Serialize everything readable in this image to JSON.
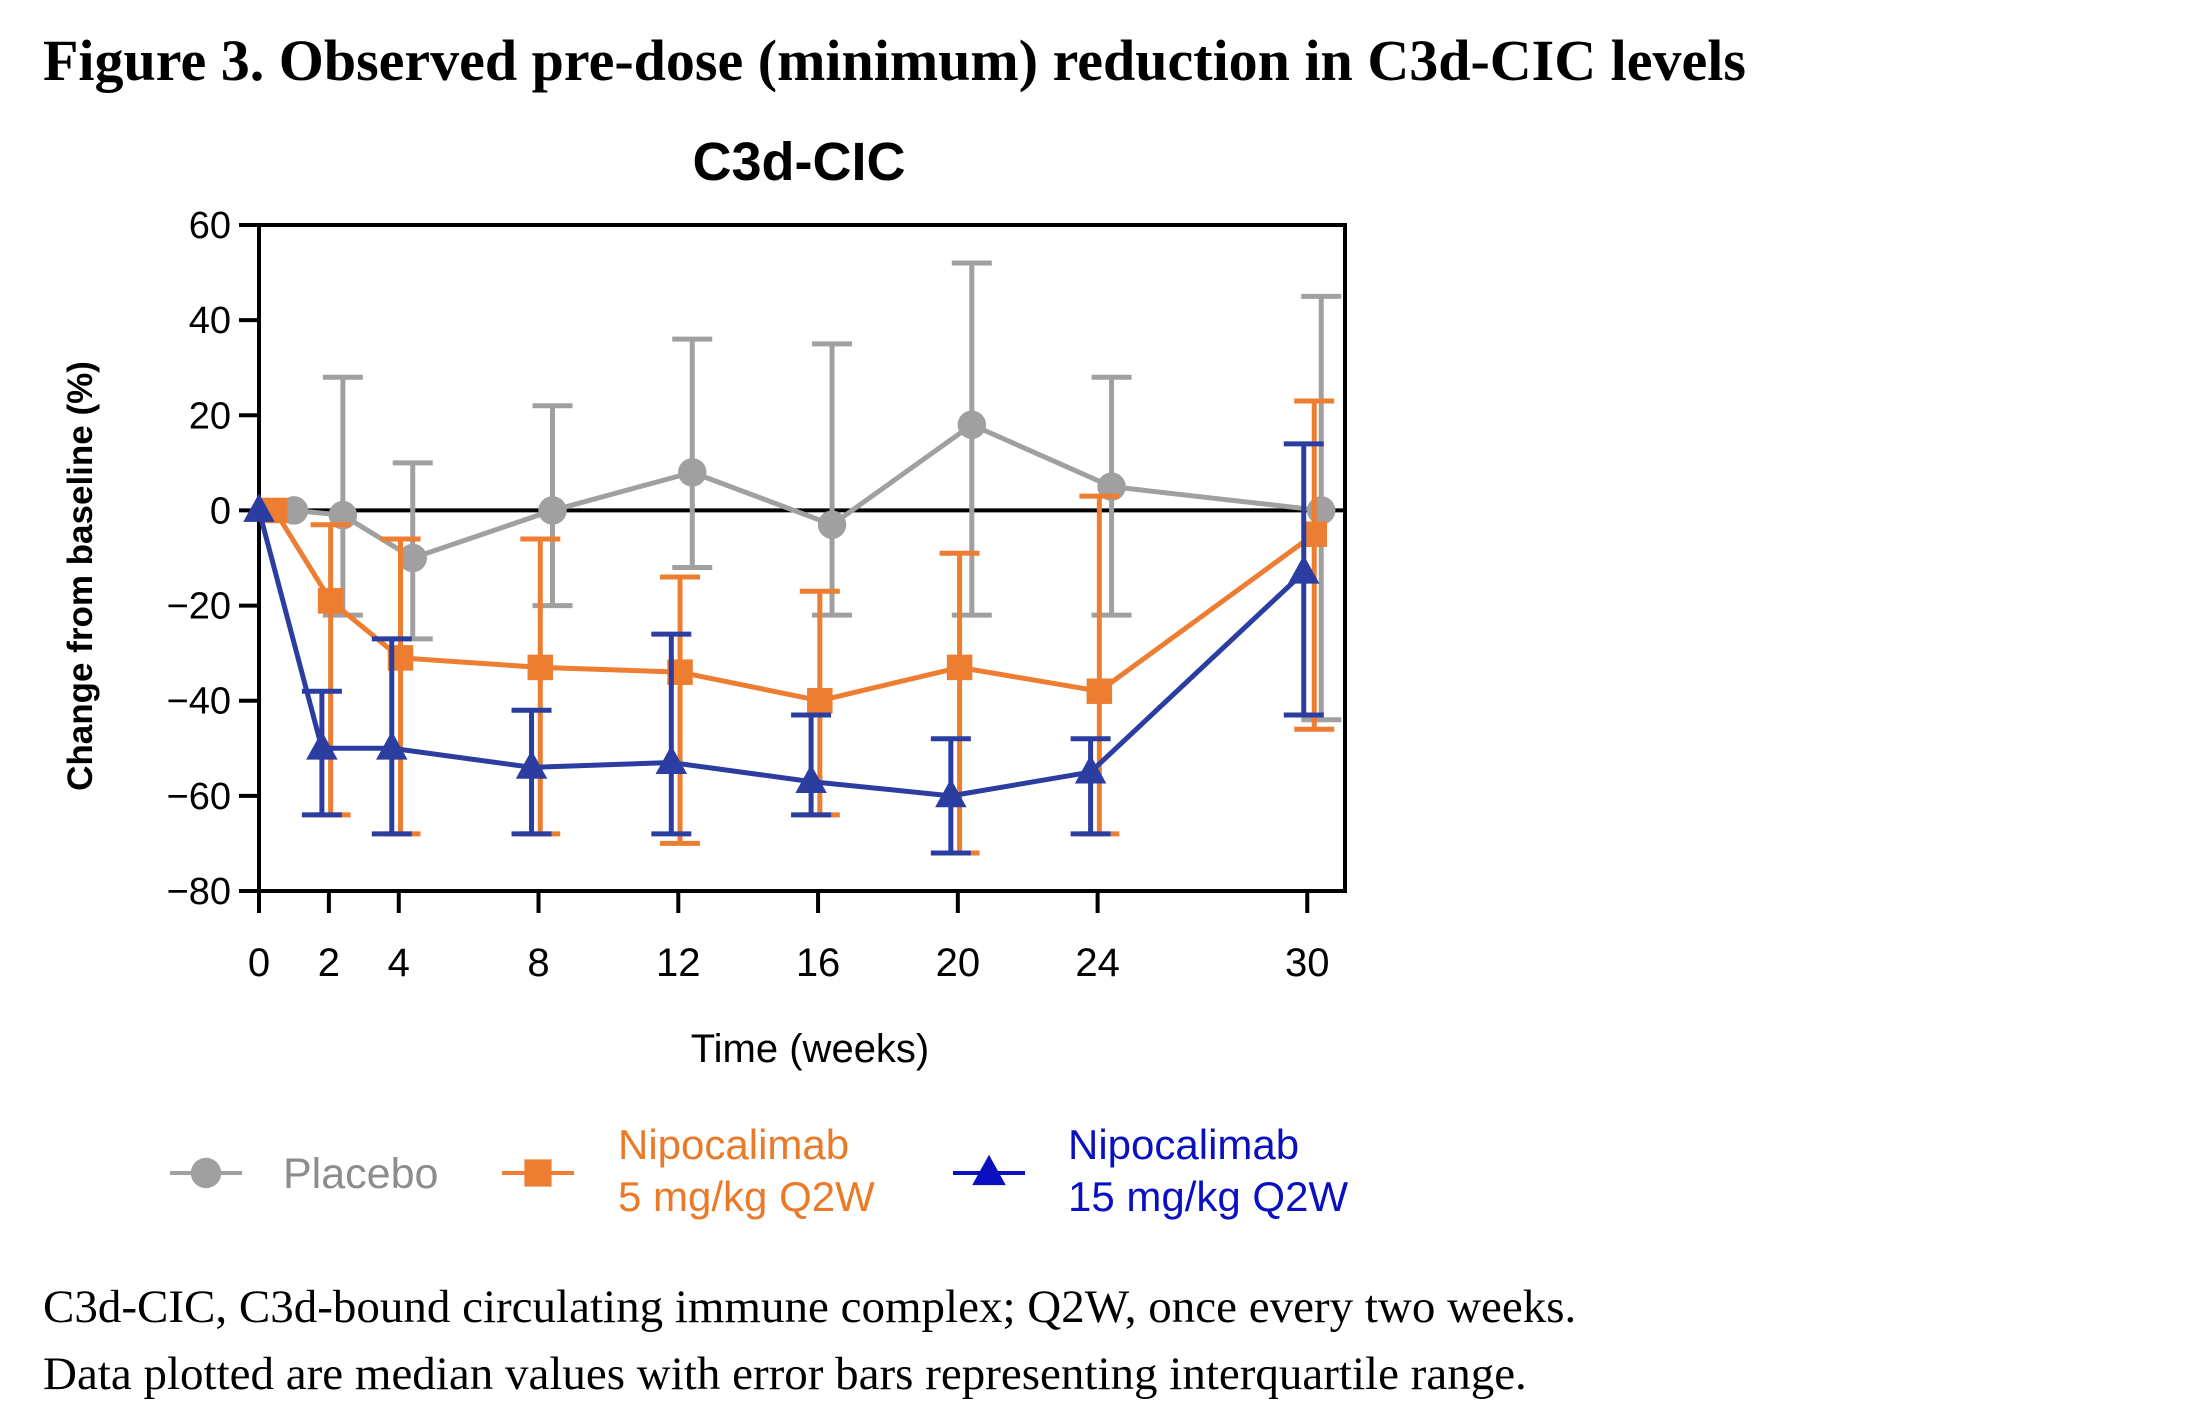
{
  "figure": {
    "title": "Figure 3. Observed pre-dose (minimum) reduction in C3d-CIC levels",
    "caption_lines": [
      "C3d-CIC, C3d-bound circulating immune complex; Q2W, once every two weeks.",
      "Data plotted are median values with error bars representing interquartile range."
    ]
  },
  "legend": {
    "items": [
      {
        "lines": [
          "Placebo"
        ],
        "marker": "circle-icon",
        "color": "#a0a0a0",
        "text_color": "#8c8c8c"
      },
      {
        "lines": [
          "Nipocalimab",
          "5 mg/kg Q2W"
        ],
        "marker": "square-icon",
        "color": "#ed7d31",
        "text_color": "#ea7a28"
      },
      {
        "lines": [
          "Nipocalimab",
          "15 mg/kg Q2W"
        ],
        "marker": "triangle-icon",
        "color": "#0a10c0",
        "text_color": "#0a10c0"
      }
    ]
  },
  "chart_data": {
    "type": "line",
    "title": "C3d-CIC",
    "xlabel": "Time (weeks)",
    "ylabel": "Change from baseline (%)",
    "x": [
      0,
      2,
      4,
      8,
      12,
      16,
      20,
      24,
      30
    ],
    "xticks": [
      0,
      2,
      4,
      8,
      12,
      16,
      20,
      24,
      30
    ],
    "xlim": [
      0,
      31.1
    ],
    "yticks": [
      60,
      40,
      20,
      0,
      -20,
      -40,
      -60,
      -80
    ],
    "ytick_labels": [
      "60",
      "40",
      "20",
      "0",
      "−20",
      "−40",
      "−60",
      "−80"
    ],
    "xtick_labels": [
      "0",
      "2",
      "4",
      "8",
      "12",
      "16",
      "20",
      "24",
      "30"
    ],
    "ylim": [
      -80,
      60
    ],
    "reference_line": 0,
    "grid": false,
    "legend_position": "bottom",
    "error_bars": "interquartile range",
    "series": [
      {
        "name": "Placebo",
        "marker": "circle",
        "color": "#a0a0a0",
        "values": [
          0,
          -1,
          -10,
          0,
          8,
          -3,
          18,
          5,
          0
        ],
        "lower": [
          0,
          -22,
          -27,
          -20,
          -12,
          -22,
          -22,
          -22,
          -44
        ],
        "upper": [
          0,
          28,
          10,
          22,
          36,
          35,
          52,
          28,
          45
        ]
      },
      {
        "name": "Nipocalimab 5 mg/kg Q2W",
        "marker": "square",
        "color": "#ed7d31",
        "values": [
          0,
          -19,
          -31,
          -33,
          -34,
          -40,
          -33,
          -38,
          -5
        ],
        "lower": [
          0,
          -64,
          -68,
          -68,
          -70,
          -64,
          -72,
          -68,
          -46
        ],
        "upper": [
          0,
          -3,
          -6,
          -6,
          -14,
          -17,
          -9,
          3,
          23
        ]
      },
      {
        "name": "Nipocalimab 15 mg/kg Q2W",
        "marker": "triangle",
        "color": "#2b3da0",
        "values": [
          0,
          -50,
          -50,
          -54,
          -53,
          -57,
          -60,
          -55,
          -13
        ],
        "lower": [
          0,
          -64,
          -68,
          -68,
          -68,
          -64,
          -72,
          -68,
          -43
        ],
        "upper": [
          0,
          -38,
          -27,
          -42,
          -26,
          -43,
          -48,
          -48,
          14
        ]
      }
    ]
  }
}
